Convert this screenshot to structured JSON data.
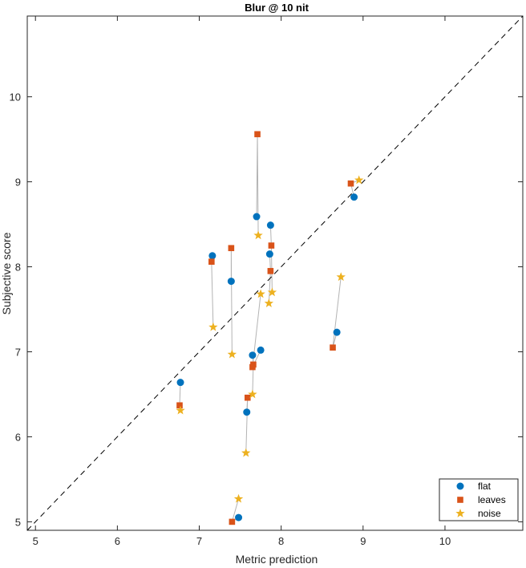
{
  "chart_data": {
    "type": "scatter",
    "title": "Blur @ 10 nit",
    "xlabel": "Metric prediction",
    "ylabel": "Subjective score",
    "xlim": [
      4.9,
      10.95
    ],
    "ylim": [
      4.9,
      10.95
    ],
    "xticks": [
      5,
      6,
      7,
      8,
      9,
      10
    ],
    "yticks": [
      5,
      6,
      7,
      8,
      9,
      10
    ],
    "grid": false,
    "legend_position": "bottom-right",
    "diagonal_reference_line": true,
    "connector_color": "#b3b3b3",
    "series": [
      {
        "name": "flat",
        "marker": "circle",
        "color": "#0072BD",
        "points": [
          [
            6.77,
            6.64
          ],
          [
            7.16,
            8.13
          ],
          [
            7.39,
            7.83
          ],
          [
            7.7,
            8.59
          ],
          [
            7.87,
            8.49
          ],
          [
            7.86,
            8.15
          ],
          [
            7.65,
            6.96
          ],
          [
            7.75,
            7.02
          ],
          [
            7.58,
            6.29
          ],
          [
            7.48,
            5.05
          ],
          [
            8.68,
            7.23
          ],
          [
            8.89,
            8.82
          ]
        ]
      },
      {
        "name": "leaves",
        "marker": "square",
        "color": "#D95319",
        "points": [
          [
            6.76,
            6.37
          ],
          [
            7.15,
            8.06
          ],
          [
            7.39,
            8.22
          ],
          [
            7.71,
            9.56
          ],
          [
            7.88,
            8.25
          ],
          [
            7.87,
            7.95
          ],
          [
            7.66,
            6.85
          ],
          [
            7.65,
            6.82
          ],
          [
            7.59,
            6.46
          ],
          [
            7.4,
            5.0
          ],
          [
            8.63,
            7.05
          ],
          [
            8.85,
            8.98
          ]
        ]
      },
      {
        "name": "noise",
        "marker": "star",
        "color": "#EDB120",
        "points": [
          [
            6.77,
            6.31
          ],
          [
            7.17,
            7.29
          ],
          [
            7.4,
            6.97
          ],
          [
            7.72,
            8.37
          ],
          [
            7.89,
            7.7
          ],
          [
            7.85,
            7.57
          ],
          [
            7.65,
            6.5
          ],
          [
            7.75,
            7.68
          ],
          [
            7.57,
            5.81
          ],
          [
            7.48,
            5.27
          ],
          [
            8.73,
            7.88
          ],
          [
            8.95,
            9.02
          ]
        ]
      }
    ]
  }
}
